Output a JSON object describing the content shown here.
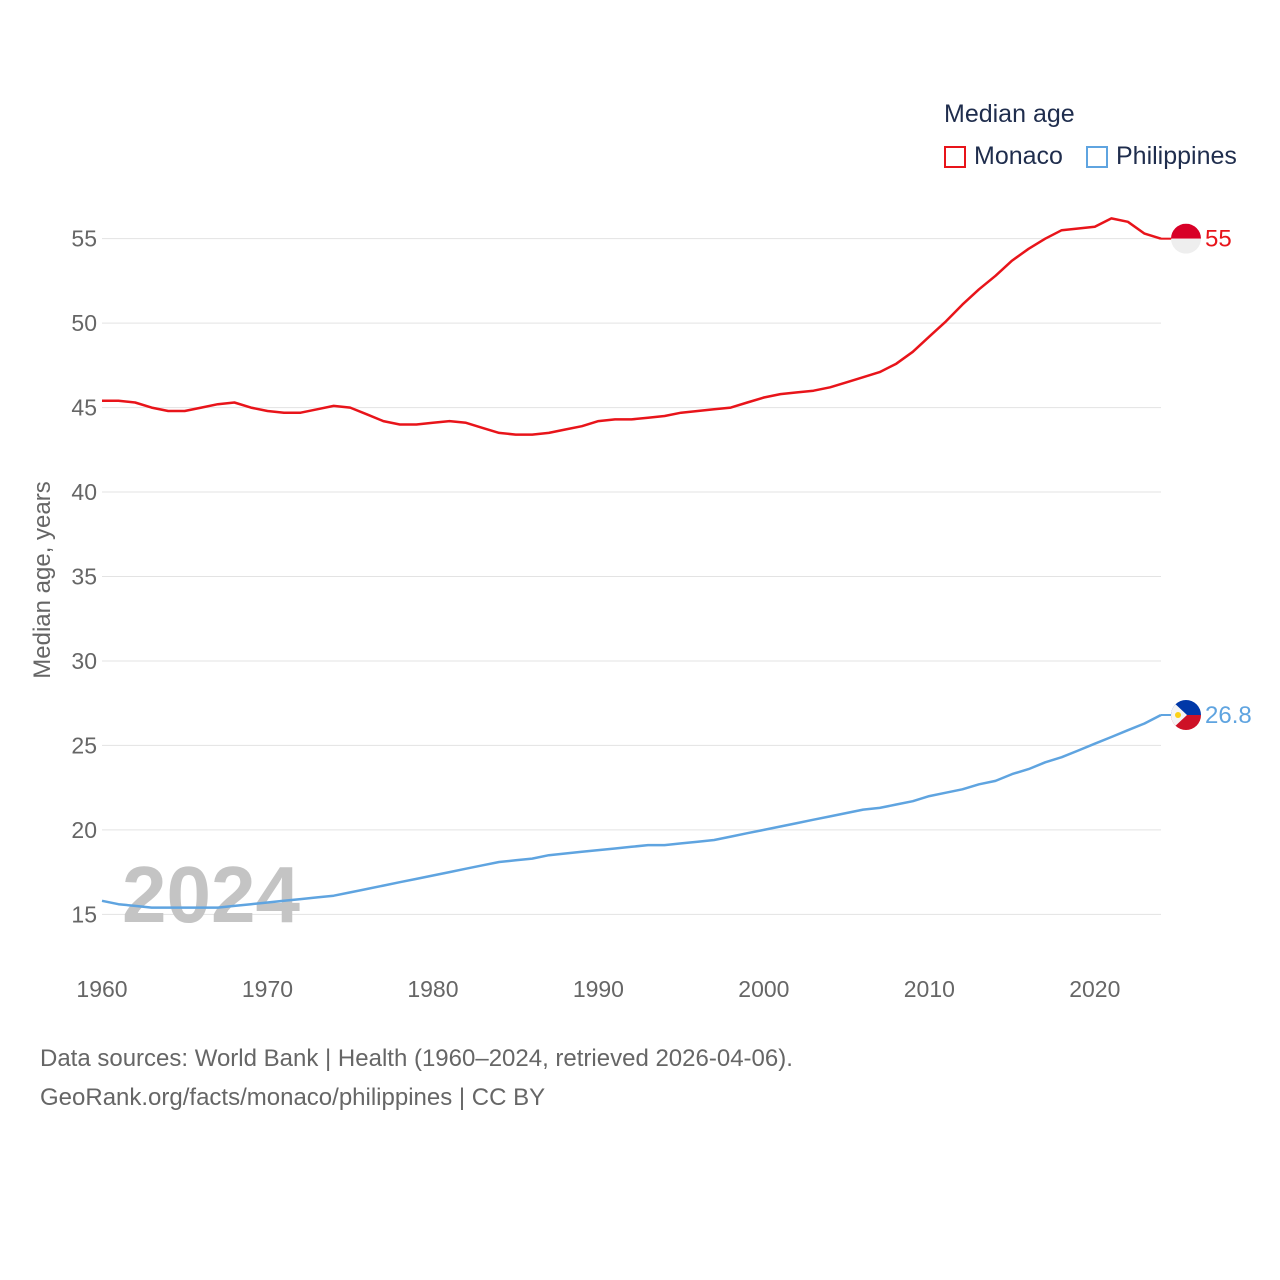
{
  "legend": {
    "title": "Median age",
    "items": [
      {
        "label": "Monaco",
        "color": "#e8141a"
      },
      {
        "label": "Philippines",
        "color": "#5fa4e0"
      }
    ]
  },
  "footer": {
    "line1": "Data sources: World Bank | Health (1960–2024, retrieved 2026-04-06).",
    "line2": "GeoRank.org/facts/monaco/philippines | CC BY"
  },
  "chart_data": {
    "type": "line",
    "ylabel": "Median age, years",
    "xlabel": "",
    "watermark": "2024",
    "xlim": [
      1960,
      2024
    ],
    "ylim": [
      12,
      58
    ],
    "yticks": [
      15,
      20,
      25,
      30,
      35,
      40,
      45,
      50,
      55
    ],
    "xticks": [
      1960,
      1970,
      1980,
      1990,
      2000,
      2010,
      2020
    ],
    "grid": true,
    "x": [
      1960,
      1961,
      1962,
      1963,
      1964,
      1965,
      1966,
      1967,
      1968,
      1969,
      1970,
      1971,
      1972,
      1973,
      1974,
      1975,
      1976,
      1977,
      1978,
      1979,
      1980,
      1981,
      1982,
      1983,
      1984,
      1985,
      1986,
      1987,
      1988,
      1989,
      1990,
      1991,
      1992,
      1993,
      1994,
      1995,
      1996,
      1997,
      1998,
      1999,
      2000,
      2001,
      2002,
      2003,
      2004,
      2005,
      2006,
      2007,
      2008,
      2009,
      2010,
      2011,
      2012,
      2013,
      2014,
      2015,
      2016,
      2017,
      2018,
      2019,
      2020,
      2021,
      2022,
      2023,
      2024
    ],
    "series": [
      {
        "name": "Monaco",
        "color": "#e8141a",
        "end_label": "55",
        "values": [
          45.4,
          45.4,
          45.3,
          45.0,
          44.8,
          44.8,
          45.0,
          45.2,
          45.3,
          45.0,
          44.8,
          44.7,
          44.7,
          44.9,
          45.1,
          45.0,
          44.6,
          44.2,
          44.0,
          44.0,
          44.1,
          44.2,
          44.1,
          43.8,
          43.5,
          43.4,
          43.4,
          43.5,
          43.7,
          43.9,
          44.2,
          44.3,
          44.3,
          44.4,
          44.5,
          44.7,
          44.8,
          44.9,
          45.0,
          45.3,
          45.6,
          45.8,
          45.9,
          46.0,
          46.2,
          46.5,
          46.8,
          47.1,
          47.6,
          48.3,
          49.2,
          50.1,
          51.1,
          52.0,
          52.8,
          53.7,
          54.4,
          55.0,
          55.5,
          55.6,
          55.7,
          56.2,
          56.0,
          55.3,
          55.0
        ]
      },
      {
        "name": "Philippines",
        "color": "#5fa4e0",
        "end_label": "26.8",
        "values": [
          15.8,
          15.6,
          15.5,
          15.4,
          15.4,
          15.4,
          15.4,
          15.4,
          15.5,
          15.6,
          15.7,
          15.8,
          15.9,
          16.0,
          16.1,
          16.3,
          16.5,
          16.7,
          16.9,
          17.1,
          17.3,
          17.5,
          17.7,
          17.9,
          18.1,
          18.2,
          18.3,
          18.5,
          18.6,
          18.7,
          18.8,
          18.9,
          19.0,
          19.1,
          19.1,
          19.2,
          19.3,
          19.4,
          19.6,
          19.8,
          20.0,
          20.2,
          20.4,
          20.6,
          20.8,
          21.0,
          21.2,
          21.3,
          21.5,
          21.7,
          22.0,
          22.2,
          22.4,
          22.7,
          22.9,
          23.3,
          23.6,
          24.0,
          24.3,
          24.7,
          25.1,
          25.5,
          25.9,
          26.3,
          26.8
        ]
      }
    ]
  }
}
